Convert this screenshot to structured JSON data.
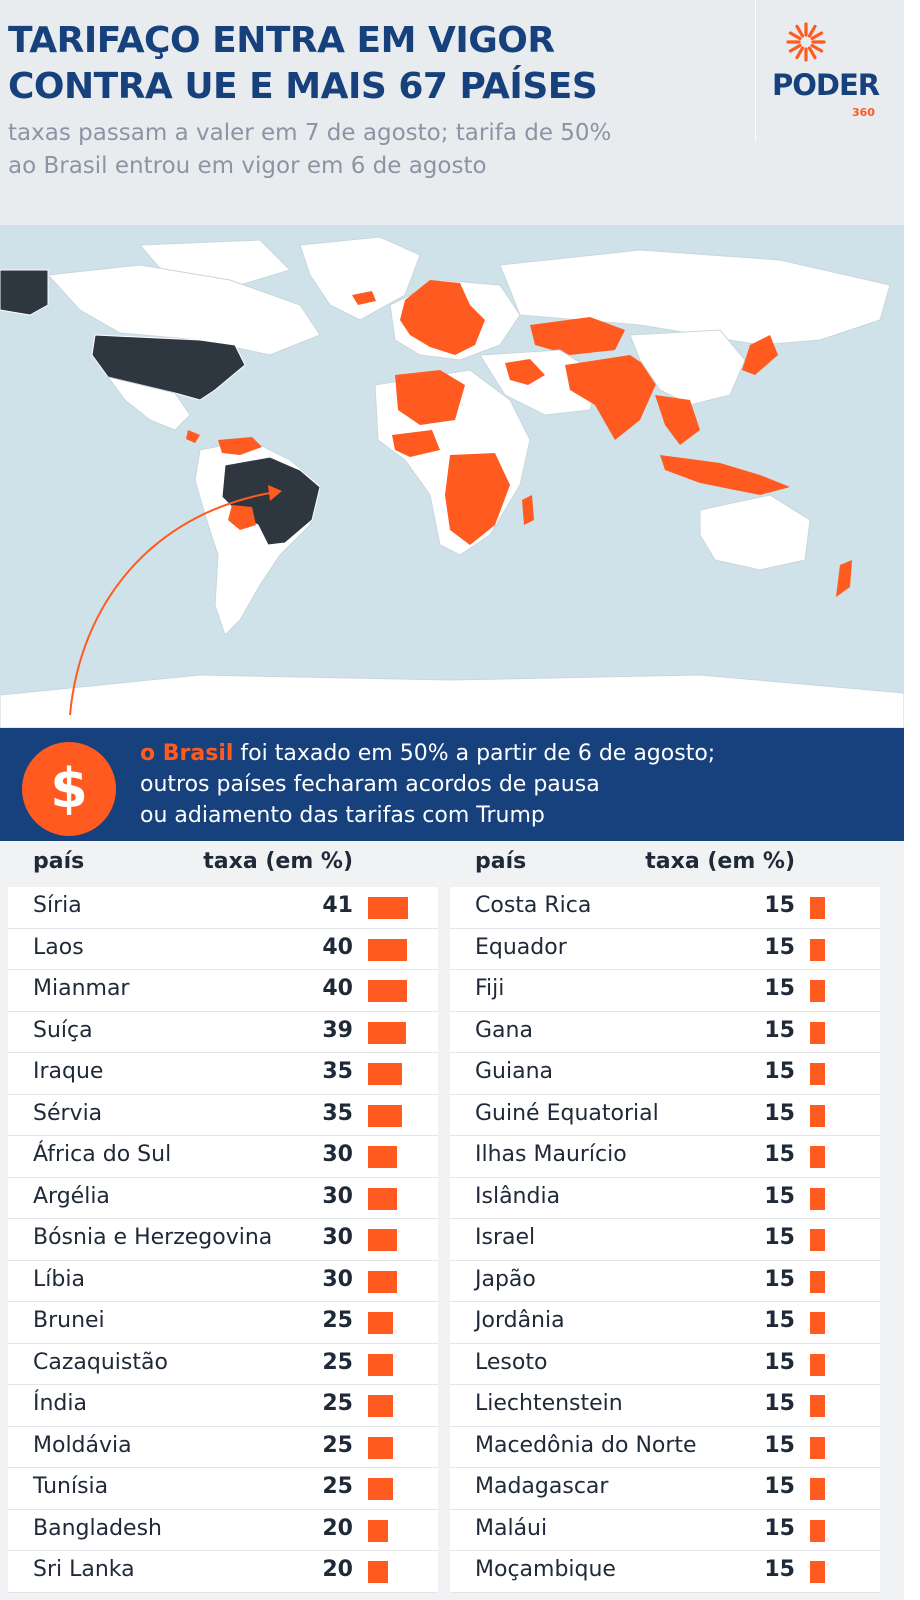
{
  "header": {
    "title_line1": "TARIFAÇO ENTRA EM VIGOR",
    "title_line2": "CONTRA UE E MAIS 67 PAÍSES",
    "subtitle_line1": "taxas passam a valer em 7 de agosto; tarifa de 50%",
    "subtitle_line2": "ao Brasil entrou em vigor em 6 de agosto",
    "logo_word": "PODER",
    "logo_sub": "360"
  },
  "colors": {
    "accent": "#ff5a1f",
    "navy": "#17417c",
    "dark_country": "#2e3640",
    "land": "#ffffff",
    "ocean": "#cfe2ea"
  },
  "banner": {
    "highlight": "o Brasil",
    "line1_rest": " foi taxado em 50% a partir de 6 de agosto;",
    "line2": "outros países fecharam acordos de pausa",
    "line3": "ou adiamento das tarifas com Trump",
    "icon": "dollar-icon",
    "symbol": "$"
  },
  "table": {
    "col_country": "país",
    "col_rate": "taxa (em %)"
  },
  "chart_data": {
    "type": "table",
    "value_label": "taxa (em %)",
    "left": [
      {
        "country": "Síria",
        "value": 41
      },
      {
        "country": "Laos",
        "value": 40
      },
      {
        "country": "Mianmar",
        "value": 40
      },
      {
        "country": "Suíça",
        "value": 39
      },
      {
        "country": "Iraque",
        "value": 35
      },
      {
        "country": "Sérvia",
        "value": 35
      },
      {
        "country": "África do Sul",
        "value": 30
      },
      {
        "country": "Argélia",
        "value": 30
      },
      {
        "country": "Bósnia e Herzegovina",
        "value": 30
      },
      {
        "country": "Líbia",
        "value": 30
      },
      {
        "country": "Brunei",
        "value": 25
      },
      {
        "country": "Cazaquistão",
        "value": 25
      },
      {
        "country": "Índia",
        "value": 25
      },
      {
        "country": "Moldávia",
        "value": 25
      },
      {
        "country": "Tunísia",
        "value": 25
      },
      {
        "country": "Bangladesh",
        "value": 20
      },
      {
        "country": "Sri Lanka",
        "value": 20
      }
    ],
    "right": [
      {
        "country": "Costa Rica",
        "value": 15
      },
      {
        "country": "Equador",
        "value": 15
      },
      {
        "country": "Fiji",
        "value": 15
      },
      {
        "country": "Gana",
        "value": 15
      },
      {
        "country": "Guiana",
        "value": 15
      },
      {
        "country": "Guiné Equatorial",
        "value": 15
      },
      {
        "country": "Ilhas Maurício",
        "value": 15
      },
      {
        "country": "Islândia",
        "value": 15
      },
      {
        "country": "Israel",
        "value": 15
      },
      {
        "country": "Japão",
        "value": 15
      },
      {
        "country": "Jordânia",
        "value": 15
      },
      {
        "country": "Lesoto",
        "value": 15
      },
      {
        "country": "Liechtenstein",
        "value": 15
      },
      {
        "country": "Macedônia do Norte",
        "value": 15
      },
      {
        "country": "Madagascar",
        "value": 15
      },
      {
        "country": "Maláui",
        "value": 15
      },
      {
        "country": "Moçambique",
        "value": 15
      }
    ]
  }
}
